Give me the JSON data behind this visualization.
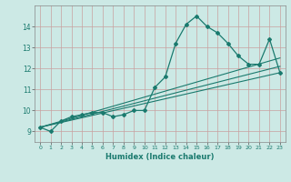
{
  "title": "",
  "xlabel": "Humidex (Indice chaleur)",
  "x_values": [
    0,
    1,
    2,
    3,
    4,
    5,
    6,
    7,
    8,
    9,
    10,
    11,
    12,
    13,
    14,
    15,
    16,
    17,
    18,
    19,
    20,
    21,
    22,
    23
  ],
  "main_line": [
    9.2,
    9.0,
    9.5,
    9.7,
    9.8,
    9.9,
    9.9,
    9.7,
    9.8,
    10.0,
    10.0,
    11.1,
    11.6,
    13.2,
    14.1,
    14.5,
    14.0,
    13.7,
    13.2,
    12.6,
    12.2,
    12.2,
    13.4,
    11.8
  ],
  "trend_lines": [
    [
      [
        0,
        9.2
      ],
      [
        23,
        11.8
      ]
    ],
    [
      [
        0,
        9.2
      ],
      [
        23,
        12.1
      ]
    ],
    [
      [
        0,
        9.2
      ],
      [
        23,
        12.5
      ]
    ]
  ],
  "ylim": [
    8.5,
    15.0
  ],
  "xlim": [
    -0.5,
    23.5
  ],
  "yticks": [
    9,
    10,
    11,
    12,
    13,
    14
  ],
  "xticks": [
    0,
    1,
    2,
    3,
    4,
    5,
    6,
    7,
    8,
    9,
    10,
    11,
    12,
    13,
    14,
    15,
    16,
    17,
    18,
    19,
    20,
    21,
    22,
    23
  ],
  "line_color": "#1a7a6e",
  "bg_color": "#cce9e5",
  "grid_color": "#b8d8d4"
}
